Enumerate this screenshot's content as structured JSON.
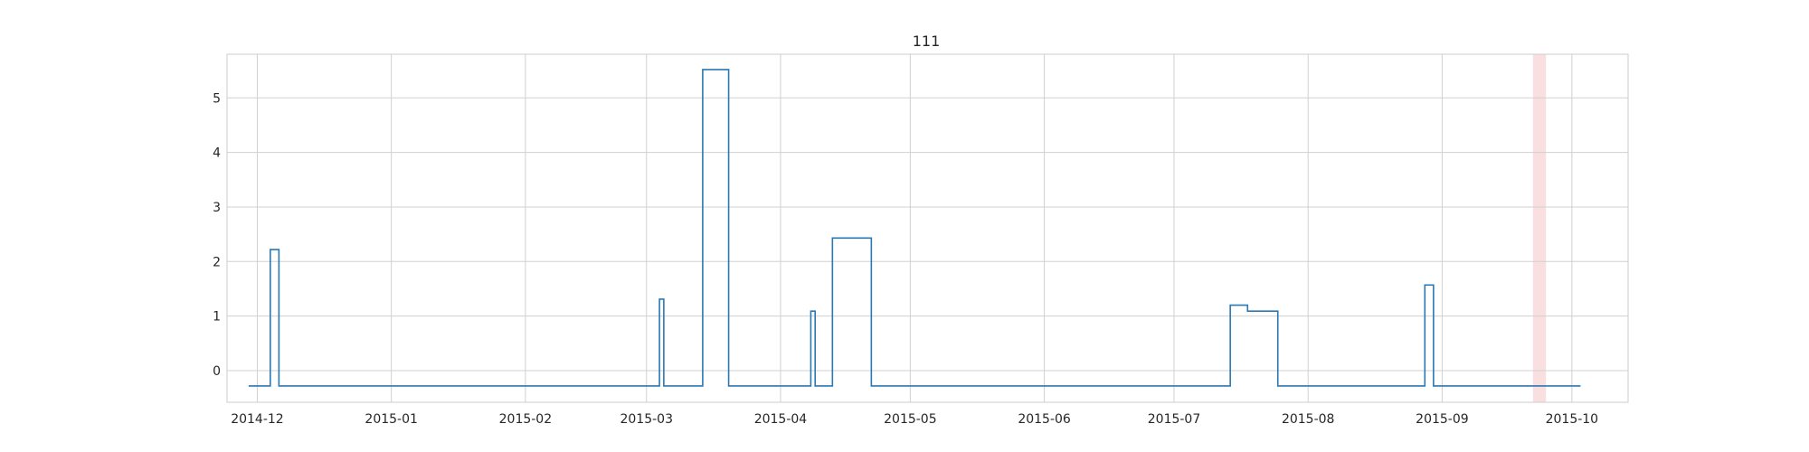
{
  "chart_data": {
    "type": "line",
    "title": "111",
    "xlabel": "",
    "ylabel": "",
    "x_axis": {
      "kind": "date",
      "range": [
        "2014-11-24",
        "2015-10-14"
      ],
      "ticks": [
        "2014-12-01",
        "2015-01-01",
        "2015-02-01",
        "2015-03-01",
        "2015-04-01",
        "2015-05-01",
        "2015-06-01",
        "2015-07-01",
        "2015-08-01",
        "2015-09-01",
        "2015-10-01"
      ],
      "tick_labels": [
        "2014-12",
        "2015-01",
        "2015-02",
        "2015-03",
        "2015-04",
        "2015-05",
        "2015-06",
        "2015-07",
        "2015-08",
        "2015-09",
        "2015-10"
      ]
    },
    "y_axis": {
      "range": [
        -0.58,
        5.8
      ],
      "ticks": [
        0,
        1,
        2,
        3,
        4,
        5
      ],
      "tick_labels": [
        "0",
        "1",
        "2",
        "3",
        "4",
        "5"
      ]
    },
    "grid": true,
    "legend": "none",
    "highlight_band": {
      "start": "2015-09-22",
      "end": "2015-09-25",
      "color": "#f7c9cc"
    },
    "series": [
      {
        "step": "post",
        "color": "#2a78b4",
        "points": [
          [
            "2014-11-29",
            -0.28
          ],
          [
            "2014-12-04",
            2.22
          ],
          [
            "2014-12-06",
            -0.28
          ],
          [
            "2015-03-04",
            1.31
          ],
          [
            "2015-03-05",
            -0.28
          ],
          [
            "2015-03-14",
            5.52
          ],
          [
            "2015-03-20",
            -0.28
          ],
          [
            "2015-04-08",
            1.09
          ],
          [
            "2015-04-09",
            -0.28
          ],
          [
            "2015-04-13",
            2.43
          ],
          [
            "2015-04-22",
            -0.28
          ],
          [
            "2015-07-14",
            1.2
          ],
          [
            "2015-07-18",
            1.09
          ],
          [
            "2015-07-25",
            -0.28
          ],
          [
            "2015-08-28",
            1.57
          ],
          [
            "2015-08-30",
            -0.28
          ],
          [
            "2015-10-03",
            -0.28
          ]
        ]
      }
    ]
  }
}
